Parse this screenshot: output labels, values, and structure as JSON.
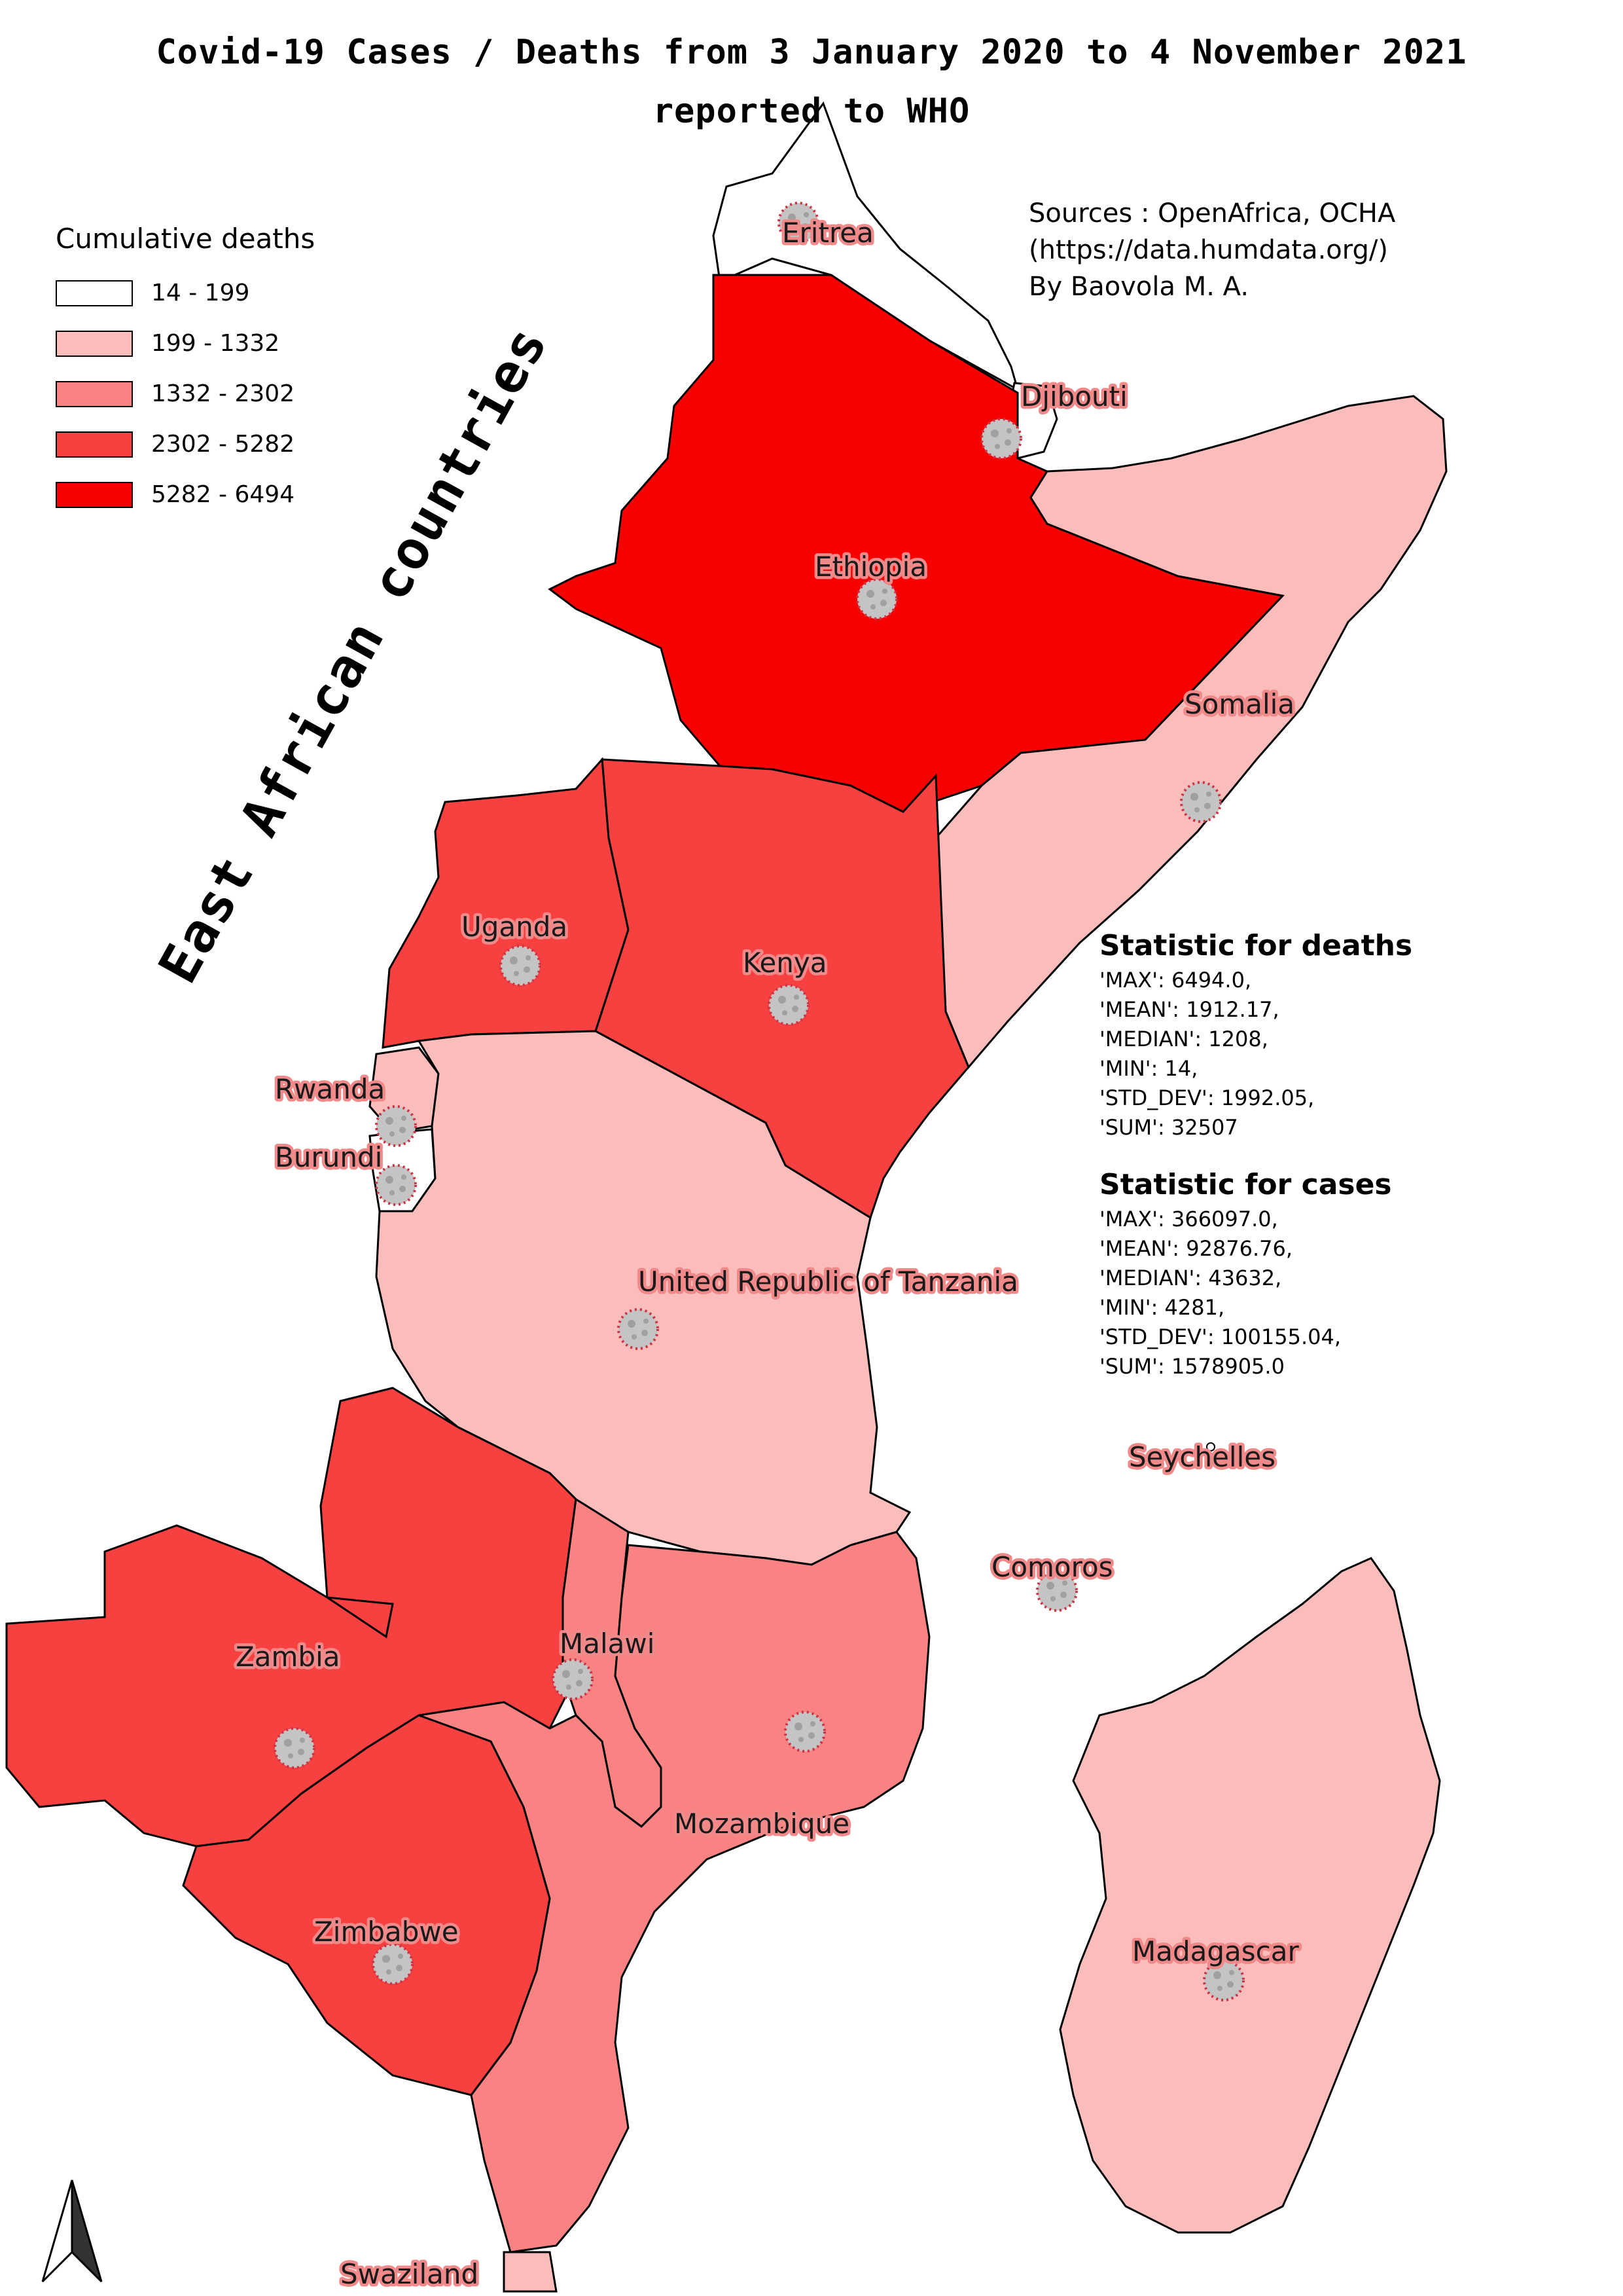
{
  "title_line1": "Covid-19 Cases / Deaths from 3 January 2020 to 4 November 2021",
  "title_line2": "reported to WHO",
  "side_title": "East African countries",
  "sources": {
    "line1": "Sources : OpenAfrica, OCHA",
    "line2": "(https://data.humdata.org/)",
    "line3": "By Baovola M. A."
  },
  "legend": {
    "title": "Cumulative deaths",
    "items": [
      {
        "label": "14 - 199",
        "color": "#ffffff"
      },
      {
        "label": "199 - 1332",
        "color": "#fbbcbc"
      },
      {
        "label": "1332 - 2302",
        "color": "#f98383"
      },
      {
        "label": "2302 - 5282",
        "color": "#f74040"
      },
      {
        "label": "5282 - 6494",
        "color": "#f80000"
      }
    ]
  },
  "stats_deaths": {
    "heading": "Statistic for deaths",
    "lines": [
      "'MAX': 6494.0,",
      "'MEAN': 1912.17,",
      "'MEDIAN': 1208,",
      "'MIN': 14,",
      "'STD_DEV': 1992.05,",
      "'SUM': 32507"
    ]
  },
  "stats_cases": {
    "heading": "Statistic for cases",
    "lines": [
      "'MAX': 366097.0,",
      "'MEAN': 92876.76,",
      "'MEDIAN': 43632,",
      "'MIN': 4281,",
      "'STD_DEV': 100155.04,",
      "'SUM': 1578905.0"
    ]
  },
  "countries": {
    "eritrea": "Eritrea",
    "djibouti": "Djibouti",
    "ethiopia": "Ethiopia",
    "somalia": "Somalia",
    "uganda": "Uganda",
    "kenya": "Kenya",
    "rwanda": "Rwanda",
    "burundi": "Burundi",
    "tanzania": "United Republic of Tanzania",
    "seychelles": "Seychelles",
    "comoros": "Comoros",
    "malawi": "Malawi",
    "zambia": "Zambia",
    "mozambique": "Mozambique",
    "zimbabwe": "Zimbabwe",
    "madagascar": "Madagascar",
    "swaziland": "Swaziland"
  },
  "icons": {
    "virus": "virus-icon",
    "north_arrow": "north-arrow-icon"
  }
}
